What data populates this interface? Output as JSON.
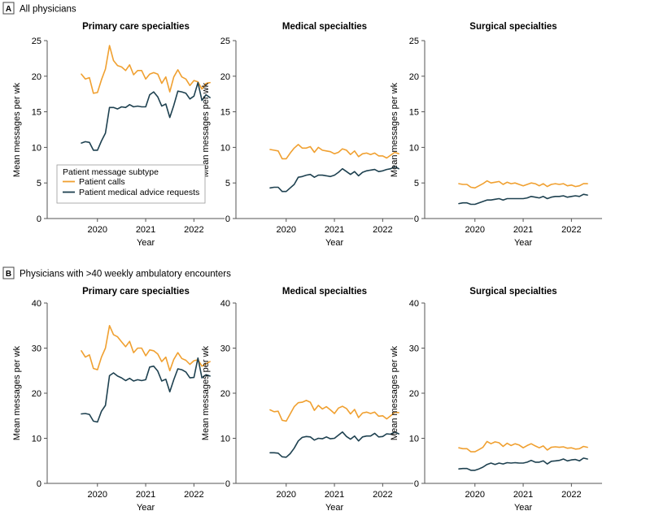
{
  "colors": {
    "calls": "#F0A030",
    "advice": "#1E4150",
    "axis": "#555555",
    "badge_border": "#444444"
  },
  "sections": [
    {
      "badge": "A",
      "title": "All physicians",
      "ylim": [
        0,
        25
      ],
      "yticks": [
        "0",
        "5",
        "10",
        "15",
        "20",
        "25"
      ],
      "ytick_values": [
        0,
        5,
        10,
        15,
        20,
        25
      ],
      "ylabel": "Mean messages per wk",
      "xlabel": "Year",
      "xticks": [
        "2020",
        "2021",
        "2022"
      ]
    },
    {
      "badge": "B",
      "title": "Physicians with >40 weekly ambulatory encounters",
      "ylim": [
        0,
        40
      ],
      "yticks": [
        "0",
        "10",
        "20",
        "30",
        "40"
      ],
      "ytick_values": [
        0,
        10,
        20,
        30,
        40
      ],
      "ylabel": "Mean messages per wk",
      "xlabel": "Year",
      "xticks": [
        "2020",
        "2021",
        "2022"
      ]
    }
  ],
  "legend": {
    "title": "Patient message subtype",
    "items": [
      "Patient calls",
      "Patient medical advice requests"
    ]
  },
  "chart_data": [
    {
      "type": "line",
      "section": "A",
      "title": "Primary care specialties",
      "xlabel": "Year",
      "ylabel": "Mean messages per wk",
      "ylim": [
        0,
        25
      ],
      "x_months": [
        0,
        1,
        2,
        3,
        4,
        5,
        6,
        7,
        8,
        9,
        10,
        11,
        12,
        13,
        14,
        15,
        16,
        17,
        18,
        19,
        20,
        21,
        22,
        23,
        24,
        25,
        26,
        27,
        28,
        29,
        30,
        31,
        32,
        33,
        34
      ],
      "xtick_months": [
        4,
        16,
        28
      ],
      "xtick_labels": [
        "2020",
        "2021",
        "2022"
      ],
      "series": [
        {
          "name": "Patient calls",
          "values": [
            20.3,
            19.6,
            19.8,
            17.6,
            17.7,
            19.5,
            21.0,
            24.3,
            22.2,
            21.5,
            21.3,
            20.8,
            21.6,
            20.2,
            20.8,
            20.8,
            19.6,
            20.3,
            20.5,
            20.3,
            19.0,
            19.9,
            17.8,
            19.9,
            20.9,
            19.9,
            19.6,
            18.7,
            19.4,
            19.2,
            18.2,
            19.0,
            19.1,
            null,
            null
          ]
        },
        {
          "name": "Patient medical advice requests",
          "values": [
            10.6,
            10.8,
            10.7,
            9.6,
            9.6,
            10.9,
            12.0,
            15.6,
            15.6,
            15.4,
            15.7,
            15.6,
            16.0,
            15.7,
            15.8,
            15.7,
            15.7,
            17.4,
            17.8,
            17.1,
            15.8,
            16.1,
            14.2,
            15.9,
            17.9,
            17.8,
            17.6,
            16.8,
            17.2,
            19.1,
            16.6,
            17.4,
            17.0,
            null,
            null
          ]
        }
      ]
    },
    {
      "type": "line",
      "section": "A",
      "title": "Medical specialties",
      "xlabel": "Year",
      "ylabel": "Mean messages per wk",
      "ylim": [
        0,
        25
      ],
      "x_months": [
        0,
        1,
        2,
        3,
        4,
        5,
        6,
        7,
        8,
        9,
        10,
        11,
        12,
        13,
        14,
        15,
        16,
        17,
        18,
        19,
        20,
        21,
        22,
        23,
        24,
        25,
        26,
        27,
        28,
        29,
        30,
        31,
        32,
        33,
        34
      ],
      "xtick_months": [
        4,
        16,
        28
      ],
      "xtick_labels": [
        "2020",
        "2021",
        "2022"
      ],
      "series": [
        {
          "name": "Patient calls",
          "values": [
            9.7,
            9.6,
            9.5,
            8.4,
            8.4,
            9.2,
            9.9,
            10.4,
            9.9,
            9.9,
            10.1,
            9.3,
            10.0,
            9.6,
            9.5,
            9.4,
            9.1,
            9.3,
            9.8,
            9.6,
            9.0,
            9.5,
            8.7,
            9.1,
            9.2,
            9.0,
            9.2,
            8.8,
            8.8,
            8.5,
            8.9,
            9.3,
            9.1,
            null,
            null
          ]
        },
        {
          "name": "Patient medical advice requests",
          "values": [
            4.3,
            4.4,
            4.4,
            3.8,
            3.8,
            4.3,
            4.8,
            5.8,
            5.9,
            6.1,
            6.2,
            5.8,
            6.1,
            6.1,
            6.0,
            5.9,
            6.1,
            6.5,
            7.0,
            6.6,
            6.2,
            6.6,
            6.0,
            6.5,
            6.7,
            6.8,
            6.9,
            6.6,
            6.7,
            6.9,
            7.0,
            7.3,
            7.0,
            null,
            null
          ]
        }
      ]
    },
    {
      "type": "line",
      "section": "A",
      "title": "Surgical specialties",
      "xlabel": "Year",
      "ylabel": "Mean messages per wk",
      "ylim": [
        0,
        25
      ],
      "x_months": [
        0,
        1,
        2,
        3,
        4,
        5,
        6,
        7,
        8,
        9,
        10,
        11,
        12,
        13,
        14,
        15,
        16,
        17,
        18,
        19,
        20,
        21,
        22,
        23,
        24,
        25,
        26,
        27,
        28,
        29,
        30,
        31,
        32,
        33,
        34
      ],
      "xtick_months": [
        4,
        16,
        28
      ],
      "xtick_labels": [
        "2020",
        "2021",
        "2022"
      ],
      "series": [
        {
          "name": "Patient calls",
          "values": [
            4.9,
            4.8,
            4.8,
            4.4,
            4.3,
            4.6,
            4.9,
            5.3,
            5.0,
            5.1,
            5.2,
            4.8,
            5.1,
            4.9,
            5.0,
            4.8,
            4.6,
            4.8,
            5.0,
            4.9,
            4.6,
            4.9,
            4.5,
            4.8,
            4.9,
            4.8,
            4.9,
            4.6,
            4.7,
            4.5,
            4.6,
            4.9,
            4.9,
            null,
            null
          ]
        },
        {
          "name": "Patient medical advice requests",
          "values": [
            2.1,
            2.2,
            2.2,
            2.0,
            2.0,
            2.2,
            2.4,
            2.6,
            2.6,
            2.7,
            2.8,
            2.6,
            2.8,
            2.8,
            2.8,
            2.8,
            2.8,
            2.9,
            3.1,
            3.0,
            2.9,
            3.1,
            2.8,
            3.0,
            3.1,
            3.1,
            3.2,
            3.0,
            3.1,
            3.2,
            3.1,
            3.4,
            3.3,
            null,
            null
          ]
        }
      ]
    },
    {
      "type": "line",
      "section": "B",
      "title": "Primary care specialties",
      "xlabel": "Year",
      "ylabel": "Mean messages per wk",
      "ylim": [
        0,
        40
      ],
      "x_months": [
        0,
        1,
        2,
        3,
        4,
        5,
        6,
        7,
        8,
        9,
        10,
        11,
        12,
        13,
        14,
        15,
        16,
        17,
        18,
        19,
        20,
        21,
        22,
        23,
        24,
        25,
        26,
        27,
        28,
        29,
        30,
        31,
        32,
        33,
        34
      ],
      "xtick_months": [
        4,
        16,
        28
      ],
      "xtick_labels": [
        "2020",
        "2021",
        "2022"
      ],
      "series": [
        {
          "name": "Patient calls",
          "values": [
            29.4,
            28.0,
            28.5,
            25.5,
            25.2,
            28.0,
            30.0,
            35.0,
            33.0,
            32.5,
            31.4,
            30.3,
            31.5,
            29.0,
            30.0,
            30.0,
            28.3,
            29.6,
            29.4,
            28.7,
            27.0,
            28.0,
            25.0,
            27.5,
            29.0,
            27.7,
            27.3,
            26.4,
            27.2,
            27.4,
            26.0,
            26.5,
            27.0,
            null,
            null
          ]
        },
        {
          "name": "Patient medical advice requests",
          "values": [
            15.4,
            15.5,
            15.3,
            13.8,
            13.6,
            16.0,
            17.3,
            23.9,
            24.5,
            23.8,
            23.4,
            22.8,
            23.3,
            22.7,
            23.0,
            22.8,
            23.0,
            25.8,
            26.0,
            24.9,
            22.7,
            23.1,
            20.3,
            23.0,
            25.4,
            25.2,
            24.7,
            23.4,
            23.5,
            27.8,
            23.4,
            24.1,
            23.8,
            null,
            null
          ]
        }
      ]
    },
    {
      "type": "line",
      "section": "B",
      "title": "Medical specialties",
      "xlabel": "Year",
      "ylabel": "Mean messages per wk",
      "ylim": [
        0,
        40
      ],
      "x_months": [
        0,
        1,
        2,
        3,
        4,
        5,
        6,
        7,
        8,
        9,
        10,
        11,
        12,
        13,
        14,
        15,
        16,
        17,
        18,
        19,
        20,
        21,
        22,
        23,
        24,
        25,
        26,
        27,
        28,
        29,
        30,
        31,
        32,
        33,
        34
      ],
      "xtick_months": [
        4,
        16,
        28
      ],
      "xtick_labels": [
        "2020",
        "2021",
        "2022"
      ],
      "series": [
        {
          "name": "Patient calls",
          "values": [
            16.3,
            15.9,
            16.0,
            14.0,
            13.8,
            15.4,
            17.0,
            17.9,
            18.0,
            18.4,
            18.0,
            16.2,
            17.3,
            16.5,
            17.0,
            16.3,
            15.5,
            16.7,
            17.1,
            16.6,
            15.4,
            16.4,
            14.6,
            15.6,
            15.8,
            15.5,
            15.8,
            14.9,
            15.0,
            14.3,
            15.0,
            15.8,
            15.7,
            null,
            null
          ]
        },
        {
          "name": "Patient medical advice requests",
          "values": [
            6.8,
            6.8,
            6.7,
            5.9,
            5.8,
            6.6,
            7.8,
            9.4,
            10.2,
            10.4,
            10.3,
            9.6,
            10.0,
            9.9,
            10.3,
            9.9,
            10.0,
            10.7,
            11.4,
            10.4,
            9.8,
            10.5,
            9.4,
            10.3,
            10.5,
            10.5,
            11.1,
            10.3,
            10.4,
            11.0,
            10.9,
            11.4,
            11.0,
            null,
            null
          ]
        }
      ]
    },
    {
      "type": "line",
      "section": "B",
      "title": "Surgical specialties",
      "xlabel": "Year",
      "ylabel": "Mean messages per wk",
      "ylim": [
        0,
        40
      ],
      "x_months": [
        0,
        1,
        2,
        3,
        4,
        5,
        6,
        7,
        8,
        9,
        10,
        11,
        12,
        13,
        14,
        15,
        16,
        17,
        18,
        19,
        20,
        21,
        22,
        23,
        24,
        25,
        26,
        27,
        28,
        29,
        30,
        31,
        32,
        33,
        34
      ],
      "xtick_months": [
        4,
        16,
        28
      ],
      "xtick_labels": [
        "2020",
        "2021",
        "2022"
      ],
      "series": [
        {
          "name": "Patient calls",
          "values": [
            7.9,
            7.7,
            7.7,
            7.0,
            7.0,
            7.5,
            8.0,
            9.3,
            8.8,
            9.2,
            9.0,
            8.2,
            8.9,
            8.4,
            8.8,
            8.5,
            7.9,
            8.4,
            8.8,
            8.3,
            7.9,
            8.3,
            7.4,
            8.0,
            8.1,
            8.0,
            8.1,
            7.8,
            7.9,
            7.6,
            7.7,
            8.2,
            8.0,
            null,
            null
          ]
        },
        {
          "name": "Patient medical advice requests",
          "values": [
            3.2,
            3.3,
            3.3,
            2.9,
            2.9,
            3.2,
            3.6,
            4.2,
            4.5,
            4.2,
            4.5,
            4.3,
            4.6,
            4.5,
            4.6,
            4.5,
            4.5,
            4.7,
            5.1,
            4.7,
            4.7,
            5.0,
            4.3,
            4.9,
            5.0,
            5.1,
            5.4,
            5.0,
            5.2,
            5.3,
            5.0,
            5.6,
            5.4,
            null,
            null
          ]
        }
      ]
    }
  ]
}
